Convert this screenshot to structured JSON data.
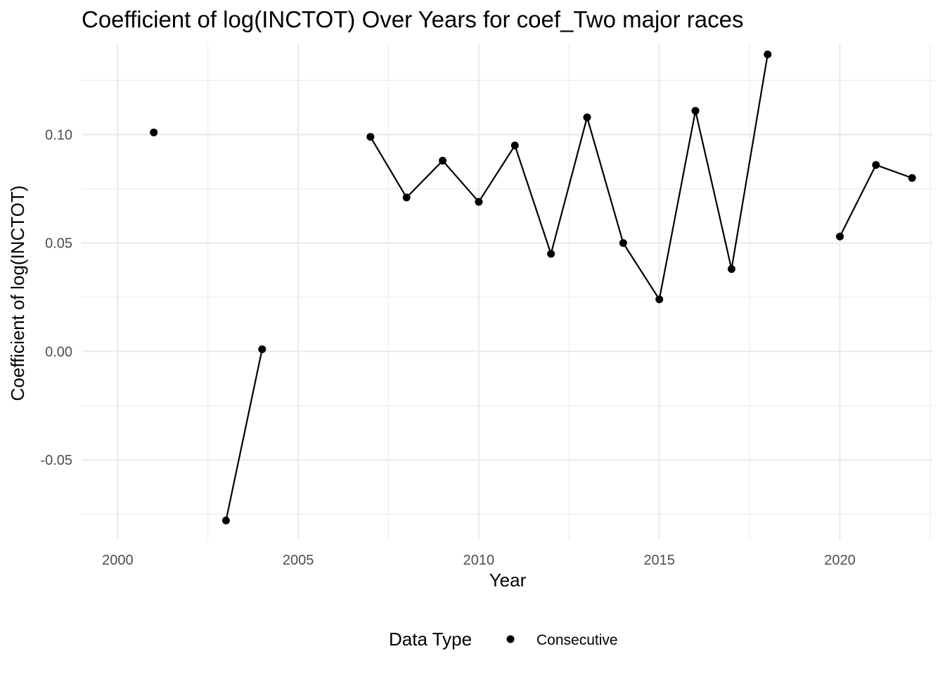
{
  "chart_data": {
    "type": "line",
    "title": "Coefficient of log(INCTOT) Over Years for coef_Two major races",
    "xlabel": "Year",
    "ylabel": "Coefficient of log(INCTOT)",
    "xlim": [
      1999.0,
      2022.6
    ],
    "ylim": [
      -0.087,
      0.142
    ],
    "x_ticks": [
      2000,
      2005,
      2010,
      2015,
      2020
    ],
    "x_tick_labels": [
      "2000",
      "2005",
      "2010",
      "2015",
      "2020"
    ],
    "x_minor_ticks": [
      2002.5,
      2007.5,
      2012.5,
      2017.5,
      2022.5
    ],
    "y_ticks": [
      -0.05,
      0.0,
      0.05,
      0.1
    ],
    "y_tick_labels": [
      "-0.05",
      "0.00",
      "0.05",
      "0.10"
    ],
    "y_minor_ticks": [
      -0.075,
      -0.025,
      0.025,
      0.075,
      0.125
    ],
    "grid": true,
    "legend": {
      "title": "Data Type",
      "position": "bottom",
      "entries": [
        "Consecutive"
      ]
    },
    "series": [
      {
        "name": "Consecutive",
        "color": "#000000",
        "x": [
          2001,
          2003,
          2004,
          2007,
          2008,
          2009,
          2010,
          2011,
          2012,
          2013,
          2014,
          2015,
          2016,
          2017,
          2018,
          2020,
          2021,
          2022
        ],
        "y": [
          0.101,
          -0.078,
          0.001,
          0.099,
          0.071,
          0.088,
          0.069,
          0.095,
          0.045,
          0.108,
          0.05,
          0.024,
          0.111,
          0.038,
          0.137,
          0.053,
          0.086,
          0.08
        ],
        "segments": [
          [
            2003,
            2004
          ],
          [
            2007,
            2008,
            2009,
            2010,
            2011,
            2012,
            2013,
            2014,
            2015,
            2016,
            2017,
            2018
          ],
          [
            2020,
            2021,
            2022
          ]
        ]
      }
    ]
  }
}
